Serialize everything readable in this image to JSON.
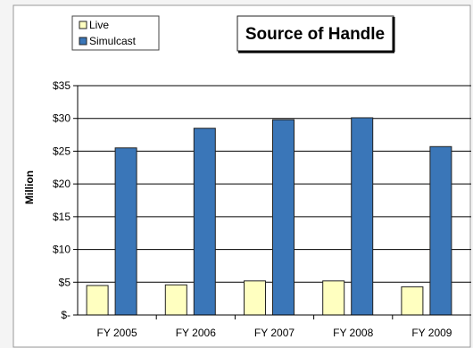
{
  "chart_data": {
    "type": "bar",
    "title": "Source of Handle",
    "ylabel": "Million",
    "xlabel": "",
    "categories": [
      "FY 2005",
      "FY 2006",
      "FY 2007",
      "FY 2008",
      "FY 2009"
    ],
    "series": [
      {
        "name": "Live",
        "values": [
          4.5,
          4.6,
          5.2,
          5.2,
          4.3
        ],
        "color": "#ffffc0"
      },
      {
        "name": "Simulcast",
        "values": [
          25.5,
          28.5,
          29.8,
          30.1,
          25.7
        ],
        "color": "#3a76b8"
      }
    ],
    "ylim": [
      0,
      35
    ],
    "yticks": [
      0,
      5,
      10,
      15,
      20,
      25,
      30,
      35
    ],
    "ytick_labels": [
      "$-",
      "$5",
      "$10",
      "$15",
      "$20",
      "$25",
      "$30",
      "$35"
    ],
    "grid": true,
    "legend_position": "top-left"
  }
}
